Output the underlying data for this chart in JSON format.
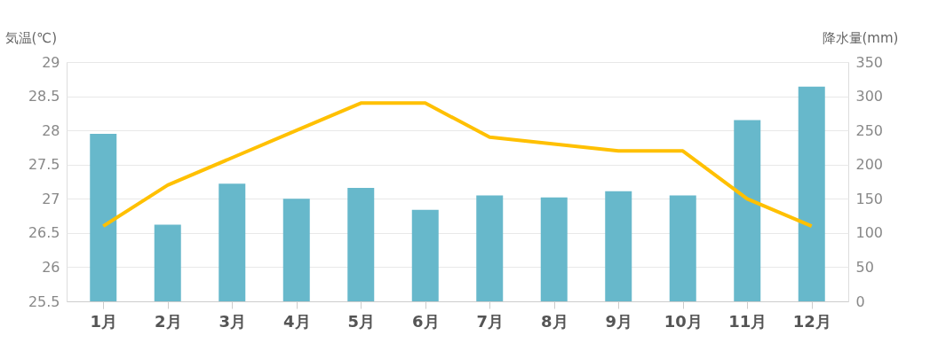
{
  "chart_data": {
    "type": "bar",
    "ylabel": "気温(℃)",
    "y2label": "降水量(mm)",
    "categories": [
      "1月",
      "2月",
      "3月",
      "4月",
      "5月",
      "6月",
      "7月",
      "8月",
      "9月",
      "10月",
      "11月",
      "12月"
    ],
    "series": [
      {
        "axis": "y2",
        "color": "#67b8cb",
        "values": [
          245,
          112,
          172,
          150,
          166,
          134,
          155,
          152,
          161,
          155,
          265,
          314
        ]
      },
      {
        "type": "line",
        "axis": "y",
        "color": "#ffc000",
        "values": [
          26.6,
          27.2,
          27.6,
          28.0,
          28.4,
          28.4,
          27.9,
          27.8,
          27.7,
          27.7,
          27.0,
          26.6
        ]
      }
    ],
    "ylim": [
      25.5,
      29
    ],
    "yticks": [
      25.5,
      {
        "value": 26,
        "label": "26"
      },
      26.5,
      {
        "value": 27,
        "label": "27"
      },
      27.5,
      {
        "value": 28,
        "label": "28"
      },
      28.5,
      {
        "value": 29,
        "label": "29"
      }
    ],
    "y2lim": [
      0,
      350
    ],
    "y2ticks": [
      0,
      50,
      100,
      150,
      200,
      250,
      300,
      350
    ],
    "grid": "y",
    "marker": "none",
    "line_style": "solid"
  }
}
